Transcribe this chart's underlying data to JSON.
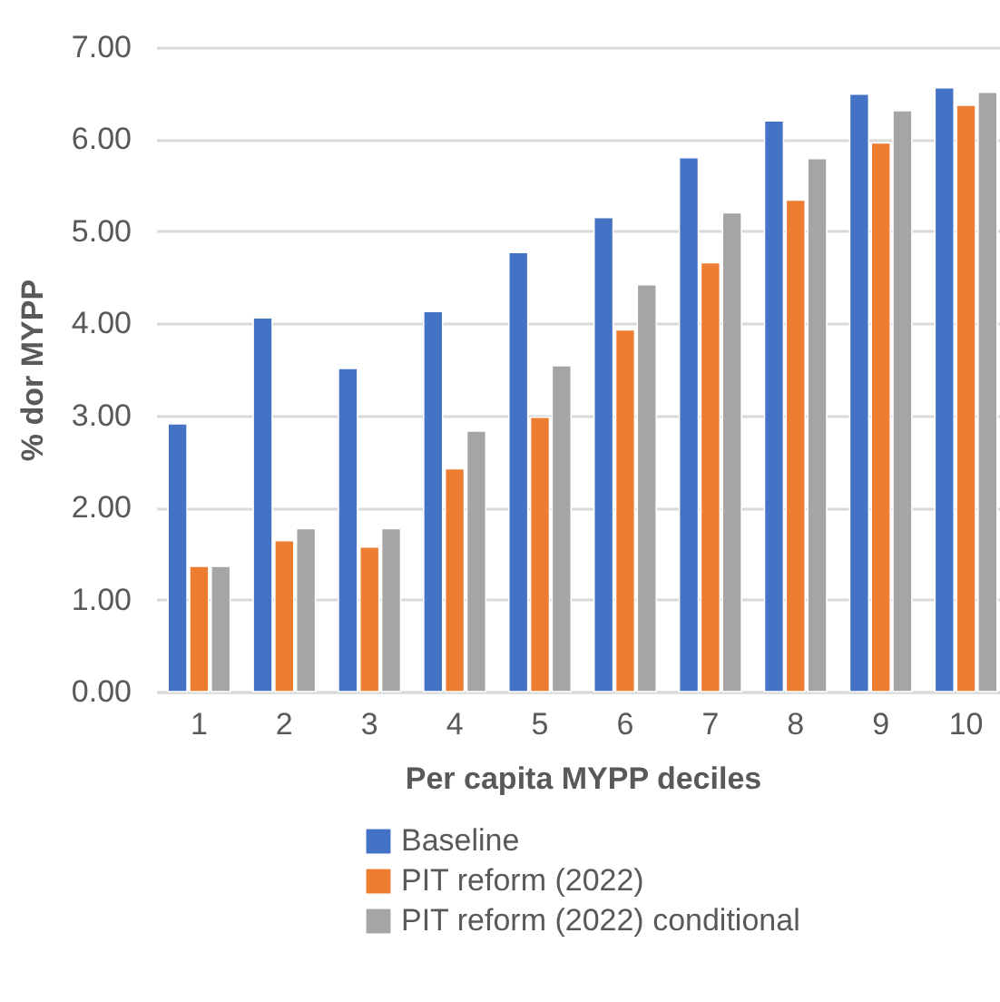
{
  "chart_data": {
    "type": "bar",
    "xlabel": "Per capita MYPP  deciles",
    "ylabel": "% dor MYPP",
    "categories": [
      "1",
      "2",
      "3",
      "4",
      "5",
      "6",
      "7",
      "8",
      "9",
      "10"
    ],
    "series": [
      {
        "name": "Baseline",
        "color": "#4472c4",
        "values": [
          2.91,
          4.06,
          3.51,
          4.13,
          4.77,
          5.15,
          5.8,
          6.2,
          6.49,
          6.56
        ]
      },
      {
        "name": "PIT reform (2022)",
        "color": "#ed7d31",
        "values": [
          1.36,
          1.64,
          1.57,
          2.42,
          2.98,
          3.93,
          4.66,
          5.34,
          5.96,
          6.37
        ]
      },
      {
        "name": "PIT reform (2022) conditional",
        "color": "#a5a5a5",
        "values": [
          1.36,
          1.77,
          1.77,
          2.83,
          3.54,
          4.42,
          5.2,
          5.79,
          6.31,
          6.51
        ]
      }
    ],
    "ylim": [
      0,
      7
    ],
    "yticks": [
      {
        "value": 0,
        "label": "0.00"
      },
      {
        "value": 1,
        "label": "1.00"
      },
      {
        "value": 2,
        "label": "2.00"
      },
      {
        "value": 3,
        "label": "3.00"
      },
      {
        "value": 4,
        "label": "4.00"
      },
      {
        "value": 5,
        "label": "5.00"
      },
      {
        "value": 6,
        "label": "6.00"
      },
      {
        "value": 7,
        "label": "7.00"
      }
    ],
    "grid": "y",
    "legend": "bottom"
  }
}
